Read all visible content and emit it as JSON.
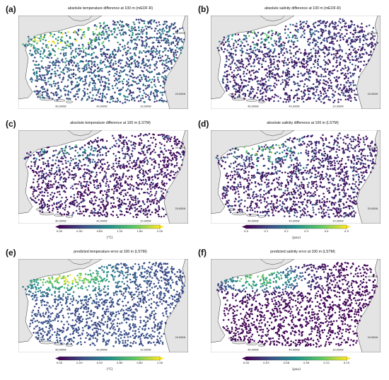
{
  "panels": [
    {
      "id": "a",
      "label": "(a)",
      "title": "absolute temperature difference at 100 m (mEOF-R)",
      "var": "temp",
      "layer": "meofr_temp"
    },
    {
      "id": "b",
      "label": "(b)",
      "title": "absolute salinity difference at 100 m (mEOF-R)",
      "var": "sal",
      "layer": "meofr_sal"
    },
    {
      "id": "c",
      "label": "(c)",
      "title": "absolute temperature difference at 100 m (LSTM)",
      "var": "temp",
      "layer": "lstm_temp"
    },
    {
      "id": "d",
      "label": "(d)",
      "title": "absolute salinity difference at 100 m (LSTM)",
      "var": "sal",
      "layer": "lstm_sal"
    },
    {
      "id": "e",
      "label": "(e)",
      "title": "predicted temperature error at 100 m (LSTM)",
      "var": "temp",
      "layer": "pred_temp"
    },
    {
      "id": "f",
      "label": "(f)",
      "title": "predicted salinity error at 100 m (LSTM)",
      "var": "sal",
      "layer": "pred_sal"
    }
  ],
  "map": {
    "lon_labels": [
      "60.000W",
      "40.000W",
      "20.000W"
    ],
    "lat_labels": [
      "40.000N",
      "20.000N"
    ],
    "land_color": "#e4e4e4",
    "ocean_color": "#ffffff",
    "coast_color": "#222222"
  },
  "colorbars": [
    {
      "id": "diff_temp",
      "ticks": [
        "0.00",
        "0.40",
        "0.80",
        "1.20",
        "1.60",
        "2.00"
      ],
      "unit": "(°C)"
    },
    {
      "id": "diff_sal",
      "ticks": [
        "0.0",
        "0.1",
        "0.2",
        "0.3",
        "0.4",
        "0.5"
      ],
      "unit": "(psu)"
    },
    {
      "id": "pred_temp",
      "ticks": [
        "0.00",
        "0.20",
        "0.40",
        "0.60",
        "0.80",
        "1.00"
      ],
      "unit": "(°C)"
    },
    {
      "id": "pred_sal",
      "ticks": [
        "0.00",
        "0.03",
        "0.06",
        "0.09",
        "0.12",
        "0.15"
      ],
      "unit": "(psu)"
    }
  ],
  "colormap": [
    "#440154",
    "#3b528b",
    "#21918c",
    "#5ec962",
    "#fde725"
  ]
}
